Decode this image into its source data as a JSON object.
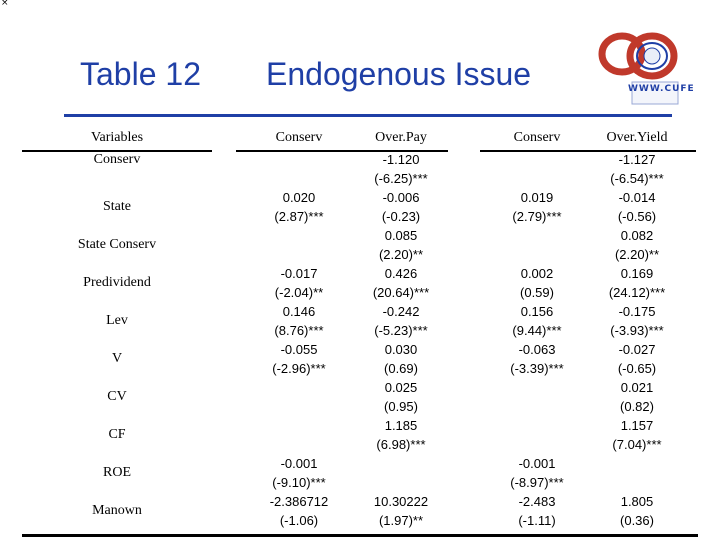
{
  "corner_mark": "×",
  "title": {
    "number": "Table 12",
    "text": "Endogenous Issue"
  },
  "logo": {
    "caption": "WWW.CUFE"
  },
  "table": {
    "headers": [
      "Variables",
      "Conserv",
      "Over.Pay",
      "Conserv",
      "Over.Yield"
    ],
    "variables": [
      "Conserv",
      "State",
      "State Conserv",
      "Predividend",
      "Lev",
      "V",
      "CV",
      "CF",
      "ROE",
      "Manown"
    ],
    "col1": [
      "",
      "",
      "0.020",
      "(2.87)***",
      "",
      "",
      "-0.017",
      "(-2.04)**",
      "0.146",
      "(8.76)***",
      "-0.055",
      "(-2.96)***",
      "",
      "",
      "",
      "",
      "-0.001",
      "(-9.10)***",
      "-2.386712",
      "(-1.06)"
    ],
    "col2": [
      "-1.120",
      "(-6.25)***",
      "-0.006",
      "(-0.23)",
      "0.085",
      "(2.20)**",
      "0.426",
      "(20.64)***",
      "-0.242",
      "(-5.23)***",
      "0.030",
      "(0.69)",
      "0.025",
      "(0.95)",
      "1.185",
      "(6.98)***",
      "",
      "",
      "10.30222",
      "(1.97)**"
    ],
    "col3": [
      "",
      "",
      "0.019",
      "(2.79)***",
      "",
      "",
      "0.002",
      "(0.59)",
      "0.156",
      "(9.44)***",
      "-0.063",
      "(-3.39)***",
      "",
      "",
      "",
      "",
      "-0.001",
      "(-8.97)***",
      "-2.483",
      "(-1.11)"
    ],
    "col4": [
      "-1.127",
      "(-6.54)***",
      "-0.014",
      "(-0.56)",
      "0.082",
      "(2.20)**",
      "0.169",
      "(24.12)***",
      "-0.175",
      "(-3.93)***",
      "-0.027",
      "(-0.65)",
      "0.021",
      "(0.82)",
      "1.157",
      "(7.04)***",
      "",
      "",
      "1.805",
      "(0.36)"
    ]
  },
  "colors": {
    "title": "#1f3fa6",
    "text": "#000000"
  }
}
